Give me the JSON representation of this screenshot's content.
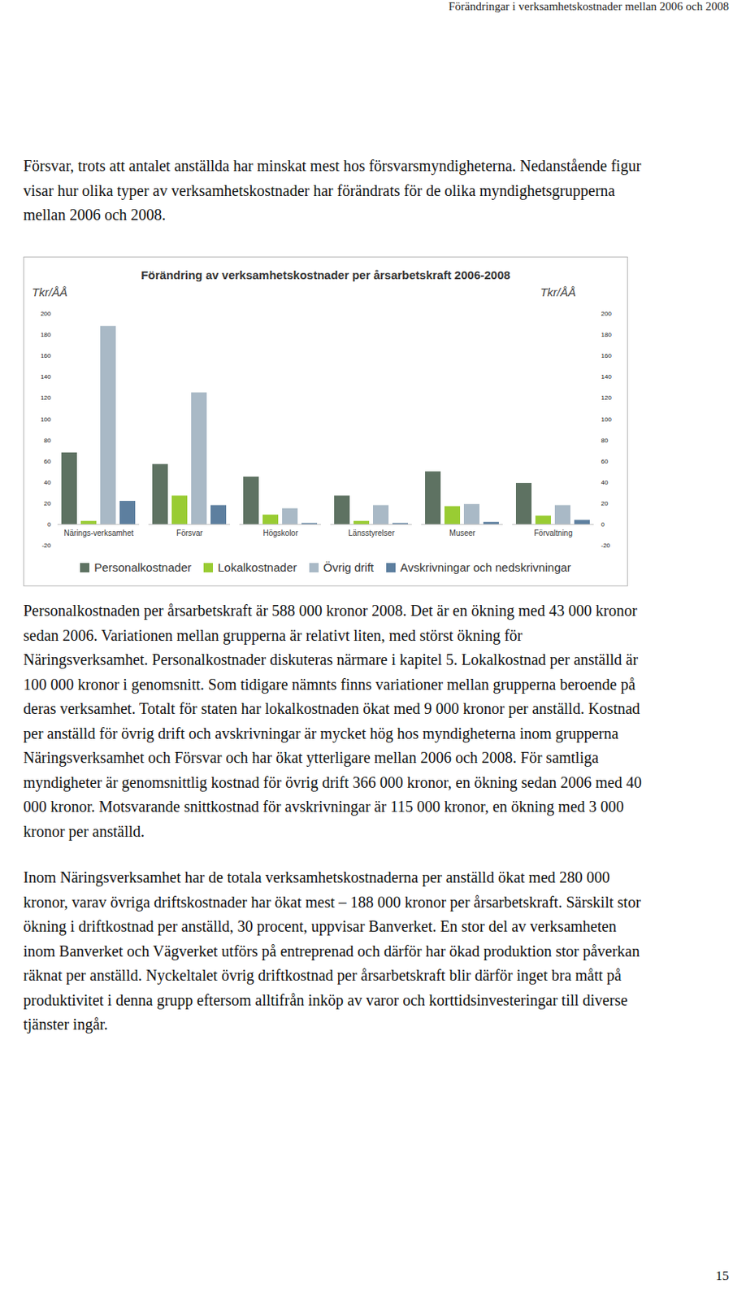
{
  "header": "Förändringar i verksamhetskostnader mellan 2006 och 2008",
  "paragraphs_before": [
    "Försvar, trots att antalet anställda har minskat mest hos försvarsmyndigheterna. Nedanstående figur visar hur olika typer av verksamhetskostnader har förändrats för de olika myndighetsgrupperna mellan 2006 och 2008."
  ],
  "chart_data": {
    "type": "bar",
    "title": "Förändring av verksamhetskostnader per årsarbetskraft 2006-2008",
    "y_label": "Tkr/ÅÅ",
    "categories": [
      "Närings-verksamhet",
      "Försvar",
      "Högskolor",
      "Länsstyrelser",
      "Museer",
      "Förvaltning"
    ],
    "series": [
      {
        "name": "Personalkostnader",
        "color": "#5e7262",
        "values": [
          68,
          57,
          45,
          27,
          50,
          39
        ]
      },
      {
        "name": "Lokalkostnader",
        "color": "#99cc33",
        "values": [
          3,
          27,
          9,
          3,
          17,
          8
        ]
      },
      {
        "name": "Övrig drift",
        "color": "#a9b9c6",
        "values": [
          188,
          125,
          15,
          18,
          19,
          18
        ]
      },
      {
        "name": "Avskrivningar och nedskrivningar",
        "color": "#5d7f9f",
        "values": [
          22,
          18,
          1,
          1,
          2,
          4
        ]
      }
    ],
    "ylim": [
      -20,
      200
    ],
    "yticks": [
      -20,
      0,
      20,
      40,
      60,
      80,
      100,
      120,
      140,
      160,
      180,
      200
    ],
    "grid": false,
    "legend": "bottom"
  },
  "paragraphs_after": [
    "Personalkostnaden per årsarbetskraft är 588 000 kronor 2008. Det är en ökning med 43 000 kronor sedan 2006. Variationen mellan grupperna är relativt liten, med störst ökning för Näringsverksamhet. Personalkostnader diskuteras närmare i kapitel 5. Lokalkostnad per anställd är 100 000 kronor i genomsnitt. Som tidigare nämnts finns variationer mellan grupperna beroende på deras verksamhet. Totalt för staten har lokalkostnaden ökat med 9 000 kronor per anställd. Kostnad per anställd för övrig drift och avskrivningar är mycket hög hos myndigheterna inom grupperna Näringsverksamhet och Försvar och har ökat ytterligare mellan 2006 och 2008. För samtliga myndigheter är genomsnittlig kostnad för övrig drift 366 000 kronor, en ökning sedan 2006 med 40 000 kronor. Motsvarande snittkostnad för avskrivningar är 115 000 kronor, en ökning med 3 000 kronor per anställd.",
    "Inom Näringsverksamhet har de totala verksamhetskostnaderna per anställd ökat med 280 000 kronor, varav övriga driftskostnader har ökat mest – 188 000 kronor per årsarbetskraft. Särskilt stor ökning i driftkostnad per anställd, 30 procent, uppvisar Banverket. En stor del av verksamheten inom Banverket och Vägverket utförs på entreprenad och därför har ökad produktion stor påverkan räknat per anställd. Nyckeltalet övrig driftkostnad per årsarbetskraft blir därför inget bra mått på produktivitet i denna grupp eftersom alltifrån inköp av varor och korttidsinvesteringar till diverse tjänster ingår."
  ],
  "page_number": 15
}
